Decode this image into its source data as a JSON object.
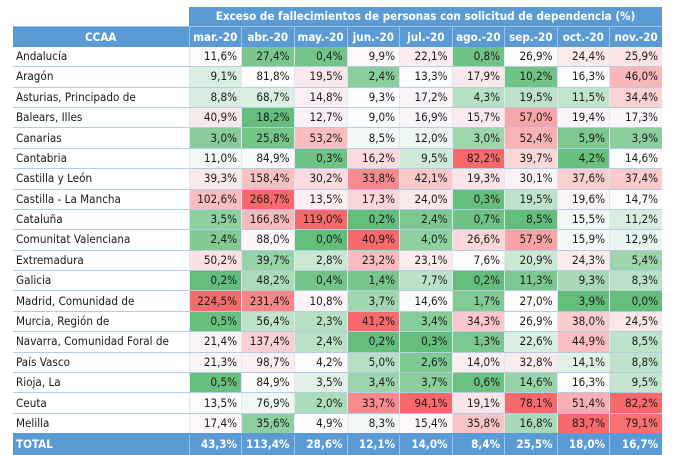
{
  "table": {
    "super_header": "Exceso de fallecimientos de personas con solicitud de dependencia (%)",
    "row_header": "CCAA",
    "months": [
      "mar.-20",
      "abr.-20",
      "may.-20",
      "jun.-20",
      "jul.-20",
      "ago.-20",
      "sep.-20",
      "oct.-20",
      "nov.-20"
    ],
    "rows": [
      {
        "name": "Andalucía",
        "values": [
          "11,6%",
          "27,4%",
          "0,4%",
          "9,9%",
          "22,1%",
          "0,8%",
          "26,9%",
          "24,4%",
          "25,9%"
        ]
      },
      {
        "name": "Aragón",
        "values": [
          "9,1%",
          "81,8%",
          "19,5%",
          "2,4%",
          "13,3%",
          "17,9%",
          "10,2%",
          "16,3%",
          "46,0%"
        ]
      },
      {
        "name": "Asturias, Principado de",
        "values": [
          "8,8%",
          "68,7%",
          "14,8%",
          "9,3%",
          "17,2%",
          "4,3%",
          "19,5%",
          "11,5%",
          "34,4%"
        ]
      },
      {
        "name": "Balears, Illes",
        "values": [
          "40,9%",
          "18,2%",
          "12,7%",
          "9,0%",
          "16,9%",
          "15,7%",
          "57,0%",
          "19,4%",
          "17,3%"
        ]
      },
      {
        "name": "Canarias",
        "values": [
          "3,0%",
          "25,8%",
          "53,2%",
          "8,5%",
          "12,0%",
          "3,0%",
          "52,4%",
          "5,9%",
          "3,9%"
        ]
      },
      {
        "name": "Cantabria",
        "values": [
          "11,0%",
          "84,9%",
          "0,3%",
          "16,2%",
          "9,5%",
          "82,2%",
          "39,7%",
          "4,2%",
          "14,6%"
        ]
      },
      {
        "name": "Castilla y León",
        "values": [
          "39,3%",
          "158,4%",
          "30,2%",
          "33,8%",
          "42,1%",
          "19,3%",
          "30,1%",
          "37,6%",
          "37,4%"
        ]
      },
      {
        "name": "Castilla - La Mancha",
        "values": [
          "102,6%",
          "268,7%",
          "13,5%",
          "17,3%",
          "24,0%",
          "0,3%",
          "19,5%",
          "19,6%",
          "14,7%"
        ]
      },
      {
        "name": "Cataluña",
        "values": [
          "3,5%",
          "166,8%",
          "119,0%",
          "0,2%",
          "2,4%",
          "0,7%",
          "8,5%",
          "15,5%",
          "11,2%"
        ]
      },
      {
        "name": "Comunitat Valenciana",
        "values": [
          "2,4%",
          "88,0%",
          "0,0%",
          "40,9%",
          "4,0%",
          "26,6%",
          "57,9%",
          "15,9%",
          "12,9%"
        ]
      },
      {
        "name": "Extremadura",
        "values": [
          "50,2%",
          "39,7%",
          "2,8%",
          "23,2%",
          "23,1%",
          "7,6%",
          "20,9%",
          "24,3%",
          "5,4%"
        ]
      },
      {
        "name": "Galicia",
        "values": [
          "0,2%",
          "48,2%",
          "0,4%",
          "1,4%",
          "7,7%",
          "0,2%",
          "11,3%",
          "9,3%",
          "8,3%"
        ]
      },
      {
        "name": "Madrid, Comunidad de",
        "values": [
          "224,5%",
          "231,4%",
          "10,8%",
          "3,7%",
          "14,6%",
          "1,7%",
          "27,0%",
          "3,9%",
          "0,0%"
        ]
      },
      {
        "name": "Murcia, Región de",
        "values": [
          "0,5%",
          "56,4%",
          "2,3%",
          "41,2%",
          "3,4%",
          "34,3%",
          "26,9%",
          "38,0%",
          "24,5%"
        ]
      },
      {
        "name": "Navarra, Comunidad Foral de",
        "values": [
          "21,4%",
          "137,4%",
          "2,4%",
          "0,2%",
          "0,3%",
          "1,3%",
          "22,6%",
          "44,9%",
          "8,5%"
        ]
      },
      {
        "name": "País Vasco",
        "values": [
          "21,3%",
          "98,7%",
          "4,2%",
          "5,0%",
          "2,6%",
          "14,0%",
          "32,8%",
          "14,1%",
          "8,8%"
        ]
      },
      {
        "name": "Rioja, La",
        "values": [
          "0,5%",
          "84,9%",
          "3,5%",
          "3,4%",
          "3,7%",
          "0,6%",
          "14,6%",
          "16,3%",
          "9,5%"
        ]
      },
      {
        "name": "Ceuta",
        "values": [
          "13,5%",
          "76,9%",
          "2,0%",
          "33,7%",
          "94,1%",
          "19,1%",
          "78,1%",
          "51,4%",
          "82,2%"
        ]
      },
      {
        "name": "Melilla",
        "values": [
          "17,4%",
          "35,6%",
          "4,9%",
          "8,3%",
          "15,4%",
          "35,8%",
          "16,8%",
          "83,7%",
          "79,1%"
        ]
      }
    ],
    "total": {
      "name": "TOTAL",
      "values": [
        "43,3%",
        "113,4%",
        "28,6%",
        "12,1%",
        "14,0%",
        "8,4%",
        "25,5%",
        "18,0%",
        "16,7%"
      ]
    }
  },
  "colors": {
    "header_bg": "#5b9bd5",
    "header_text": "#ffffff",
    "scale_low": "#63be7b",
    "scale_mid": "#fcfcff",
    "scale_high": "#f8696b"
  }
}
